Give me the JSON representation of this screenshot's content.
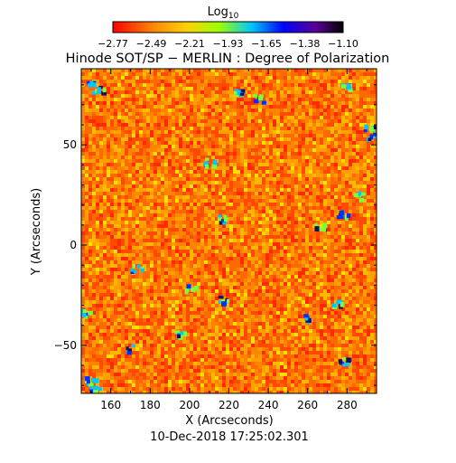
{
  "colorbar": {
    "title": "Log",
    "title_subscript": "10",
    "ticks": [
      "−2.77",
      "−2.49",
      "−2.21",
      "−1.93",
      "−1.65",
      "−1.38",
      "−1.10"
    ],
    "colors": [
      "#ff0000",
      "#ff8c00",
      "#ffd000",
      "#9cff00",
      "#00c8ff",
      "#0000ff",
      "#5a0096",
      "#000000"
    ]
  },
  "chart_data": {
    "type": "heatmap",
    "title": "Hinode SOT/SP − MERLIN : Degree of Polarization",
    "xlabel": "X (Arcseconds)",
    "ylabel": "Y (Arcseconds)",
    "x_ticks": [
      "160",
      "180",
      "200",
      "220",
      "240",
      "260",
      "280"
    ],
    "x_tick_values": [
      160,
      180,
      200,
      220,
      240,
      260,
      280
    ],
    "y_ticks": [
      "−50",
      "0",
      "50"
    ],
    "y_tick_values": [
      -50,
      0,
      50
    ],
    "xlim": [
      145,
      295
    ],
    "ylim": [
      -74,
      88
    ],
    "value_scale": "log10",
    "value_range": [
      -2.77,
      -1.1
    ],
    "dominant_color": "#ff6a00"
  },
  "footer": {
    "timestamp": "10-Dec-2018 17:25:02.301"
  }
}
